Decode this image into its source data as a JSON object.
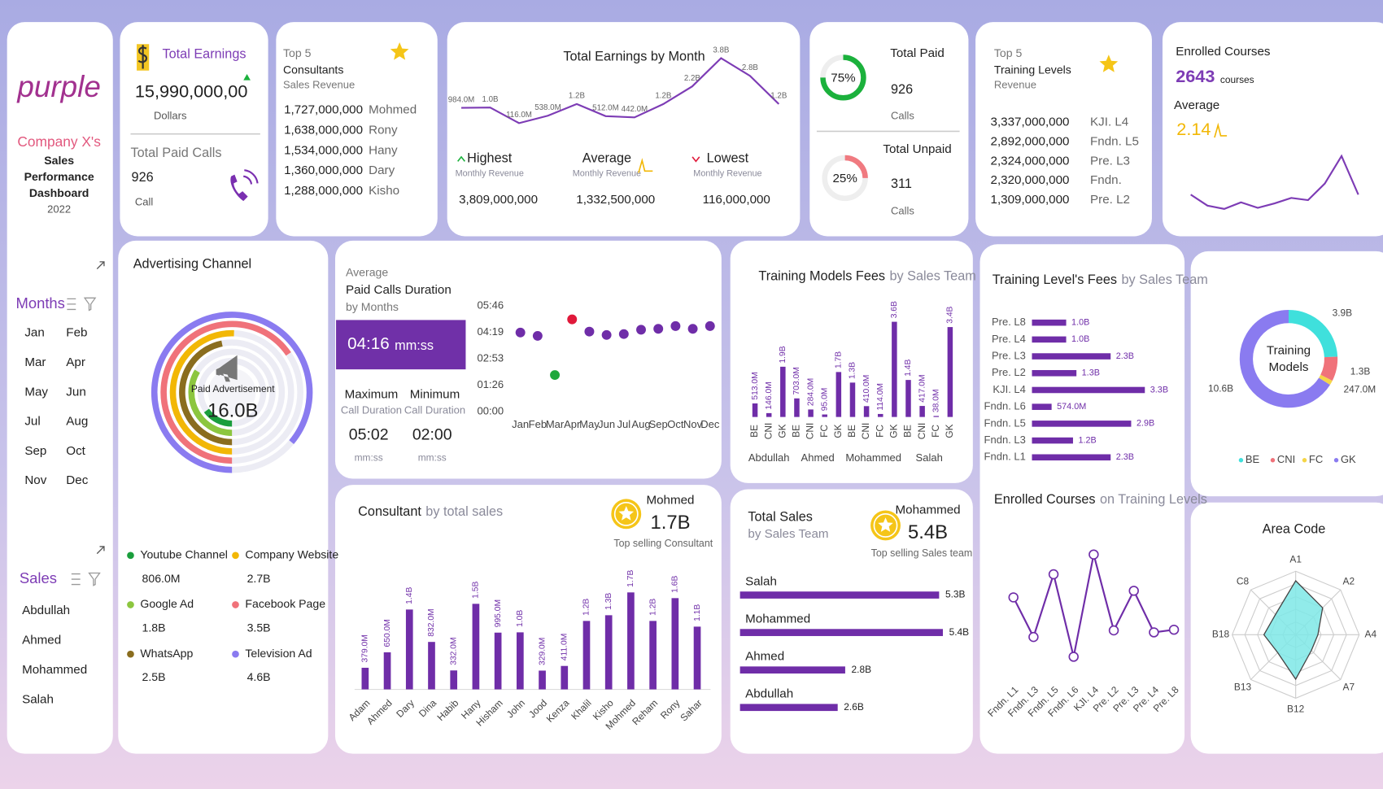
{
  "sidebar": {
    "logo": "purple",
    "company": "Company X's",
    "title_lines": [
      "Sales",
      "Performance",
      "Dashboard"
    ],
    "year": "2022",
    "months_title": "Months",
    "months": [
      "Jan",
      "Feb",
      "Mar",
      "Apr",
      "May",
      "Jun",
      "Jul",
      "Aug",
      "Sep",
      "Oct",
      "Nov",
      "Dec"
    ],
    "sales_title": "Sales",
    "sales": [
      "Abdullah",
      "Ahmed",
      "Mohammed",
      "Salah"
    ]
  },
  "earnings": {
    "title": "Total Earnings",
    "value": "15,990,000,00",
    "unit": "Dollars",
    "calls_title": "Total Paid Calls",
    "calls": "926",
    "calls_unit": "Call"
  },
  "top_consultants": {
    "title_lines": [
      "Top 5",
      "Consultants"
    ],
    "subtitle": "Sales Revenue",
    "rows": [
      [
        "1,727,000,000",
        "Mohmed"
      ],
      [
        "1,638,000,000",
        "Rony"
      ],
      [
        "1,534,000,000",
        "Hany"
      ],
      [
        "1,360,000,000",
        "Dary"
      ],
      [
        "1,288,000,000",
        "Kisho"
      ]
    ]
  },
  "earnings_stats": [
    {
      "title": "Highest",
      "sub": "Monthly Revenue",
      "value": "3,809,000,000"
    },
    {
      "title": "Average",
      "sub": "Monthly Revenue",
      "value": "1,332,500,000"
    },
    {
      "title": "Lowest",
      "sub": "Monthly Revenue",
      "value": "116,000,000"
    }
  ],
  "calls_status": {
    "paid": {
      "title": "Total Paid",
      "pct": 75,
      "pct_label": "75%",
      "count": "926",
      "unit": "Calls",
      "color": "#1bb13c"
    },
    "unpaid": {
      "title": "Total Unpaid",
      "pct": 25,
      "pct_label": "25%",
      "count": "311",
      "unit": "Calls",
      "color": "#f07a80"
    }
  },
  "top_levels": {
    "title_lines": [
      "Top 5",
      "Training Levels"
    ],
    "subtitle": "Revenue",
    "rows": [
      [
        "3,337,000,000",
        "KJI. L4"
      ],
      [
        "2,892,000,000",
        "Fndn. L5"
      ],
      [
        "2,324,000,000",
        "Pre. L3"
      ],
      [
        "2,320,000,000",
        "Fndn."
      ],
      [
        "1,309,000,000",
        "Pre. L2"
      ]
    ]
  },
  "enrolled": {
    "title": "Enrolled Courses",
    "count": "2643",
    "unit": "courses",
    "avg_title": "Average",
    "avg": "2.14"
  },
  "duration": {
    "title_lines": [
      "Average",
      "Paid Calls Duration",
      "by Months"
    ],
    "avg": "04:16",
    "avg_unit": "mm:ss",
    "max_title": "Maximum",
    "max_sub": "Call Duration",
    "max": "05:02",
    "max_unit": "mm:ss",
    "min_title": "Minimum",
    "min_sub": "Call Duration",
    "min": "02:00",
    "min_unit": "mm:ss"
  },
  "top_consultant": {
    "name": "Mohmed",
    "value": "1.7B",
    "caption": "Top selling Consultant"
  },
  "top_team": {
    "name": "Mohammed",
    "value": "5.4B",
    "caption": "Top selling Sales team"
  },
  "chart_data": [
    {
      "type": "line",
      "title": "Total Earnings by Month",
      "values": [
        984000000,
        1000000000,
        116000000,
        538000000,
        1200000000,
        512000000,
        442000000,
        1200000000,
        2200000000,
        3800000000,
        2800000000,
        1200000000
      ],
      "value_labels": [
        "984.0M",
        "1.0B",
        "116.0M",
        "538.0M",
        "1.2B",
        "512.0M",
        "442.0M",
        "1.2B",
        "2.2B",
        "3.8B",
        "2.8B",
        "1.2B"
      ],
      "color": "#7d3cb5"
    },
    {
      "type": "line",
      "values": [
        2.05,
        1.95,
        1.92,
        1.98,
        1.93,
        1.97,
        2.02,
        2.0,
        2.15,
        2.4,
        2.05
      ],
      "color": "#7d3cb5"
    },
    {
      "type": "radial_bar",
      "title": "Advertising Channel",
      "center_label": "Paid Advertisement",
      "center_value": "16.0B",
      "categories": [
        "Youtube Channel",
        "Company Website",
        "Google Ad",
        "Facebook Page",
        "WhatsApp",
        "Television Ad"
      ],
      "values": [
        806000000,
        2700000000,
        1800000000,
        3500000000,
        2500000000,
        4600000000
      ],
      "value_labels": [
        "806.0M",
        "2.7B",
        "1.8B",
        "3.5B",
        "2.5B",
        "4.6B"
      ],
      "colors": [
        "#1a9e3c",
        "#f2b705",
        "#8cc63f",
        "#f0727a",
        "#8a6d1e",
        "#8a7bf0"
      ]
    },
    {
      "type": "dot",
      "categories": [
        "Jan",
        "Feb",
        "Mar",
        "Apr",
        "May",
        "Jun",
        "Jul",
        "Aug",
        "Sep",
        "Oct",
        "Nov",
        "Dec"
      ],
      "values": [
        259,
        248,
        120,
        302,
        262,
        251,
        254,
        268,
        271,
        280,
        271,
        280
      ],
      "colors": [
        "#6f2da8",
        "#6f2da8",
        "#1fa83c",
        "#e0193a",
        "#6f2da8",
        "#6f2da8",
        "#6f2da8",
        "#6f2da8",
        "#6f2da8",
        "#6f2da8",
        "#6f2da8",
        "#6f2da8"
      ],
      "ylim": [
        0,
        346
      ],
      "yticks": [
        {
          "value": 0,
          "label": "00:00"
        },
        {
          "value": 86,
          "label": "01:26"
        },
        {
          "value": 173,
          "label": "02:53"
        },
        {
          "value": 259,
          "label": "04:19"
        },
        {
          "value": 346,
          "label": "05:46"
        }
      ]
    },
    {
      "type": "grouped_bar",
      "title": "Training Models Fees",
      "subtitle": "by Sales Team",
      "color": "#6f2da8",
      "groups": [
        {
          "name": "Abdullah",
          "categories": [
            "BE",
            "CNI",
            "GK"
          ],
          "values": [
            513000000,
            146000000,
            1900000000
          ],
          "value_labels": [
            "513.0M",
            "146.0M",
            "1.9B"
          ]
        },
        {
          "name": "Ahmed",
          "categories": [
            "BE",
            "CNI",
            "FC",
            "GK"
          ],
          "values": [
            703000000,
            284000000,
            95000000,
            1700000000
          ],
          "value_labels": [
            "703.0M",
            "284.0M",
            "95.0M",
            "1.7B"
          ]
        },
        {
          "name": "Mohammed",
          "categories": [
            "BE",
            "CNI",
            "FC",
            "GK"
          ],
          "values": [
            1300000000,
            410000000,
            114000000,
            3600000000
          ],
          "value_labels": [
            "1.3B",
            "410.0M",
            "114.0M",
            "3.6B"
          ]
        },
        {
          "name": "Salah",
          "categories": [
            "BE",
            "CNI",
            "FC",
            "GK"
          ],
          "values": [
            1400000000,
            417000000,
            38000000,
            3400000000
          ],
          "value_labels": [
            "1.4B",
            "417.0M",
            "38.0M",
            "3.4B"
          ]
        }
      ]
    },
    {
      "type": "hbar",
      "title": "Training Level's Fees",
      "subtitle": "by Sales Team",
      "categories": [
        "Pre. L8",
        "Pre. L4",
        "Pre. L3",
        "Pre. L2",
        "KJI. L4",
        "Fndn. L6",
        "Fndn. L5",
        "Fndn. L3",
        "Fndn. L1"
      ],
      "values": [
        1000000000,
        1000000000,
        2300000000,
        1300000000,
        3300000000,
        574000000,
        2900000000,
        1200000000,
        2300000000
      ],
      "value_labels": [
        "1.0B",
        "1.0B",
        "2.3B",
        "1.3B",
        "3.3B",
        "574.0M",
        "2.9B",
        "1.2B",
        "2.3B"
      ],
      "color": "#6f2da8"
    },
    {
      "type": "donut",
      "center_label": [
        "Training",
        "Models"
      ],
      "categories": [
        "BE",
        "CNI",
        "FC",
        "GK"
      ],
      "values": [
        3900000000,
        1300000000,
        247000000,
        10600000000
      ],
      "value_labels": [
        "3.9B",
        "1.3B",
        "247.0M",
        "10.6B"
      ],
      "colors": [
        "#3fe0dc",
        "#f0727a",
        "#f5d547",
        "#8a7bf0"
      ]
    },
    {
      "type": "bar",
      "title": "Consultant",
      "subtitle": "by total sales",
      "categories": [
        "Adam",
        "Ahmed",
        "Dary",
        "Dina",
        "Habib",
        "Hany",
        "Hisham",
        "John",
        "Jood",
        "Kenza",
        "Khalil",
        "Kisho",
        "Mohmed",
        "Reham",
        "Rony",
        "Sahar"
      ],
      "values": [
        379000000,
        650000000,
        1400000000,
        832000000,
        332000000,
        1500000000,
        995000000,
        1000000000,
        329000000,
        411000000,
        1200000000,
        1300000000,
        1700000000,
        1200000000,
        1600000000,
        1100000000
      ],
      "value_labels": [
        "379.0M",
        "650.0M",
        "1.4B",
        "832.0M",
        "332.0M",
        "1.5B",
        "995.0M",
        "1.0B",
        "329.0M",
        "411.0M",
        "1.2B",
        "1.3B",
        "1.7B",
        "1.2B",
        "1.6B",
        "1.1B"
      ],
      "color": "#6f2da8"
    },
    {
      "type": "hbar",
      "title": "Total Sales",
      "subtitle": "by Sales Team",
      "categories": [
        "Salah",
        "Mohammed",
        "Ahmed",
        "Abdullah"
      ],
      "values": [
        5300000000,
        5400000000,
        2800000000,
        2600000000
      ],
      "value_labels": [
        "5.3B",
        "5.4B",
        "2.8B",
        "2.6B"
      ],
      "color": "#6f2da8"
    },
    {
      "type": "line",
      "title": "Enrolled Courses",
      "subtitle": "on Training Levels",
      "categories": [
        "Fndn. L1",
        "Fndn. L3",
        "Fndn. L5",
        "Fndn. L6",
        "KJI. L4",
        "Pre. L2",
        "Pre. L3",
        "Pre. L4",
        "Pre. L8"
      ],
      "values": [
        315,
        255,
        350,
        225,
        380,
        265,
        325,
        262,
        266
      ],
      "color": "#6f2da8"
    },
    {
      "type": "radar",
      "title": "Area Code",
      "categories": [
        "A1",
        "A2",
        "A4",
        "A7",
        "B12",
        "B13",
        "B18",
        "C8"
      ],
      "values": [
        85,
        60,
        35,
        35,
        70,
        40,
        50,
        45
      ],
      "ylim": [
        0,
        100
      ],
      "color": "#7ee8e6"
    }
  ]
}
